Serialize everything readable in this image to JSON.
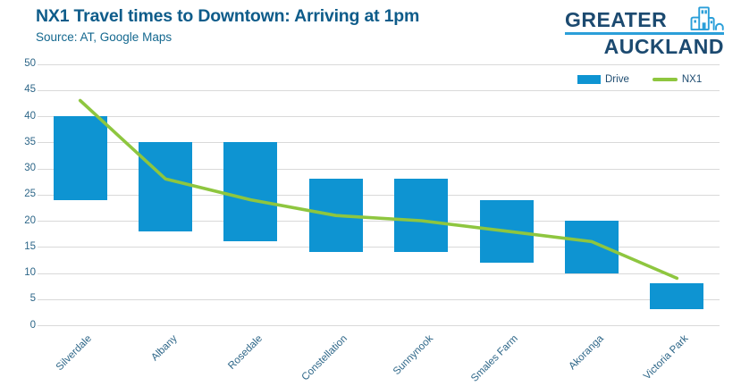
{
  "header": {
    "title": "NX1 Travel times to Downtown: Arriving at 1pm",
    "source": "Source: AT, Google Maps"
  },
  "logo": {
    "line1": "GREATER",
    "line2": "AUCKLAND",
    "icon": "city-skyline-icon",
    "navy": "#1c4a70",
    "accent": "#2b9fd9"
  },
  "legend": {
    "items": [
      {
        "label": "Drive",
        "marker": "bar",
        "color": "#0e94d2"
      },
      {
        "label": "NX1",
        "marker": "line",
        "color": "#8ec63f"
      }
    ]
  },
  "chart_data": {
    "type": "combo",
    "title": "NX1 Travel times to Downtown: Arriving at 1pm",
    "source": "Source: AT, Google Maps",
    "categories": [
      "Silverdale",
      "Albany",
      "Rosedale",
      "Constellation",
      "Sunnynook",
      "Smales Farm",
      "Akoranga",
      "Victoria Park"
    ],
    "series": [
      {
        "name": "Drive",
        "type": "floating-bar",
        "low": [
          24,
          18,
          16,
          14,
          14,
          12,
          10,
          3
        ],
        "high": [
          40,
          35,
          35,
          28,
          28,
          24,
          20,
          8
        ],
        "color": "#0e94d2"
      },
      {
        "name": "NX1",
        "type": "line",
        "values": [
          43,
          28,
          24,
          21,
          20,
          18,
          16,
          9
        ],
        "color": "#8ec63f"
      }
    ],
    "xlabel": "",
    "ylabel": "",
    "ylim": [
      0,
      50
    ],
    "ytick_step": 5,
    "grid": true,
    "gridline_color": "#d9d9d9",
    "axis_text_color": "#2d6688",
    "legend_position": "top-right"
  }
}
